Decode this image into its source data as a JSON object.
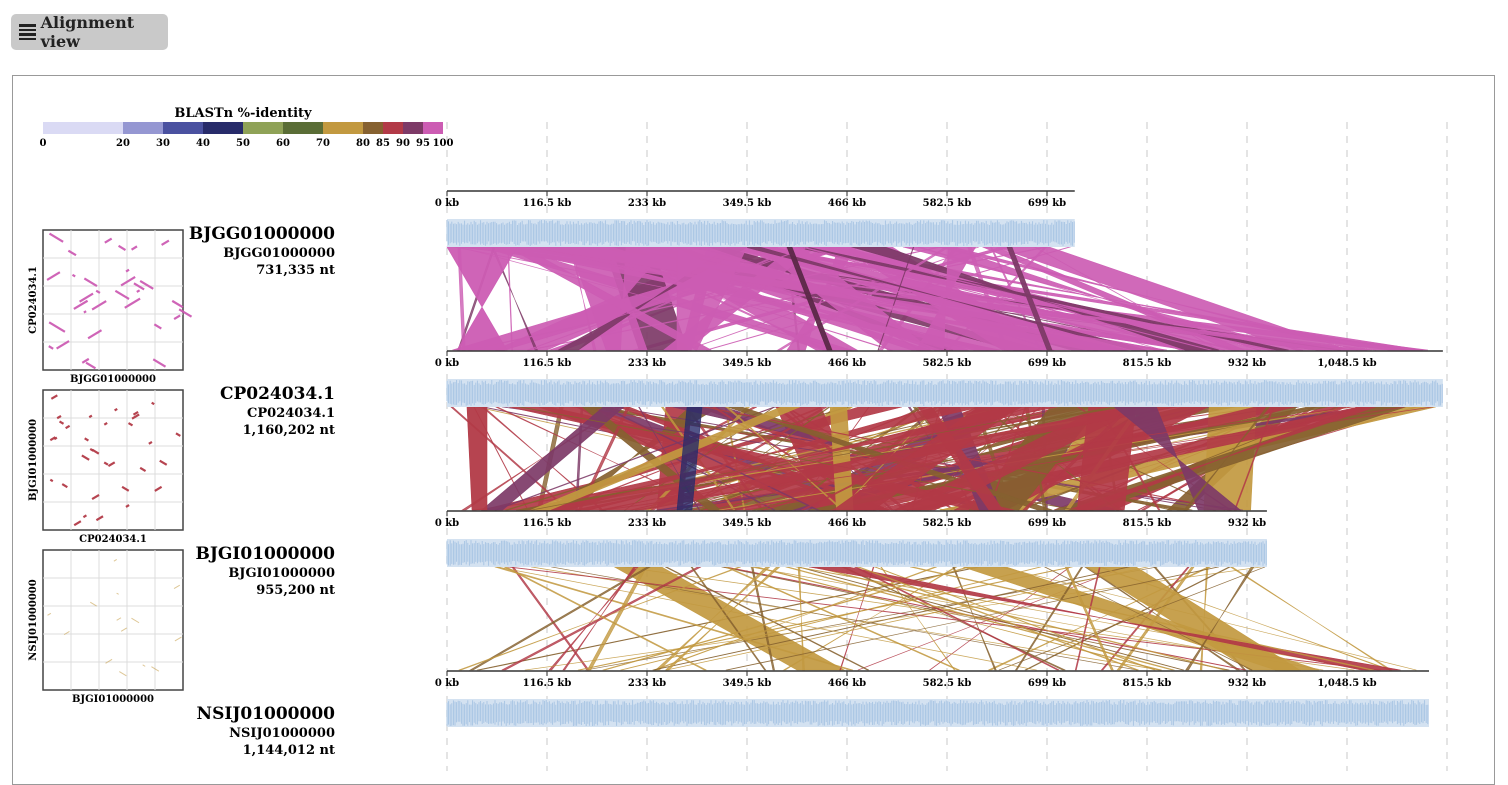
{
  "toolbar": {
    "view_label": "Alignment view",
    "menu_icon": "hamburger-menu-icon"
  },
  "legend": {
    "title": "BLASTn %-identity",
    "ticks": [
      "0",
      "20",
      "30",
      "40",
      "50",
      "60",
      "70",
      "80",
      "85",
      "90",
      "95",
      "100"
    ],
    "bins": [
      {
        "from": 0,
        "to": 20,
        "color": "#dadaf4"
      },
      {
        "from": 20,
        "to": 30,
        "color": "#9597d2"
      },
      {
        "from": 30,
        "to": 40,
        "color": "#4a51a0"
      },
      {
        "from": 40,
        "to": 50,
        "color": "#272b6a"
      },
      {
        "from": 50,
        "to": 60,
        "color": "#8fa257"
      },
      {
        "from": 60,
        "to": 70,
        "color": "#5a6d36"
      },
      {
        "from": 70,
        "to": 80,
        "color": "#c29940"
      },
      {
        "from": 80,
        "to": 85,
        "color": "#866130"
      },
      {
        "from": 85,
        "to": 90,
        "color": "#b23a47"
      },
      {
        "from": 90,
        "to": 95,
        "color": "#7d3a67"
      },
      {
        "from": 95,
        "to": 100,
        "color": "#cc5cb3"
      }
    ]
  },
  "genomes": [
    {
      "name": "BJGG01000000",
      "accession": "BJGG01000000",
      "length": "731,335 nt",
      "length_nt": 731335,
      "axis_ticks": [
        "0 kb",
        "116.5 kb",
        "233 kb",
        "349.5 kb",
        "466 kb",
        "582.5 kb",
        "699 kb"
      ]
    },
    {
      "name": "CP024034.1",
      "accession": "CP024034.1",
      "length": "1,160,202 nt",
      "length_nt": 1160202,
      "axis_ticks": [
        "0 kb",
        "116.5 kb",
        "233 kb",
        "349.5 kb",
        "466 kb",
        "582.5 kb",
        "699 kb",
        "815.5 kb",
        "932 kb",
        "1,048.5 kb"
      ]
    },
    {
      "name": "BJGI01000000",
      "accession": "BJGI01000000",
      "length": "955,200 nt",
      "length_nt": 955200,
      "axis_ticks": [
        "0 kb",
        "116.5 kb",
        "233 kb",
        "349.5 kb",
        "466 kb",
        "582.5 kb",
        "699 kb",
        "815.5 kb",
        "932 kb"
      ]
    },
    {
      "name": "NSIJ01000000",
      "accession": "NSIJ01000000",
      "length": "1,144,012 nt",
      "length_nt": 1144012,
      "axis_ticks": [
        "0 kb",
        "116.5 kb",
        "233 kb",
        "349.5 kb",
        "466 kb",
        "582.5 kb",
        "699 kb",
        "815.5 kb",
        "932 kb",
        "1,048.5 kb"
      ]
    }
  ],
  "dotplots": [
    {
      "x_label": "BJGG01000000",
      "y_label": "CP024034.1",
      "color": "#cc5cb3"
    },
    {
      "x_label": "CP024034.1",
      "y_label": "BJGI01000000",
      "color": "#b23a47"
    },
    {
      "x_label": "BJGI01000000",
      "y_label": "NSIJ01000000",
      "color": "#c29940"
    }
  ],
  "colors": {
    "gene_track": "#b7cde6",
    "gene_stroke": "#9bbbdd",
    "grid": "#dcdcdc",
    "axis": "#333333"
  }
}
